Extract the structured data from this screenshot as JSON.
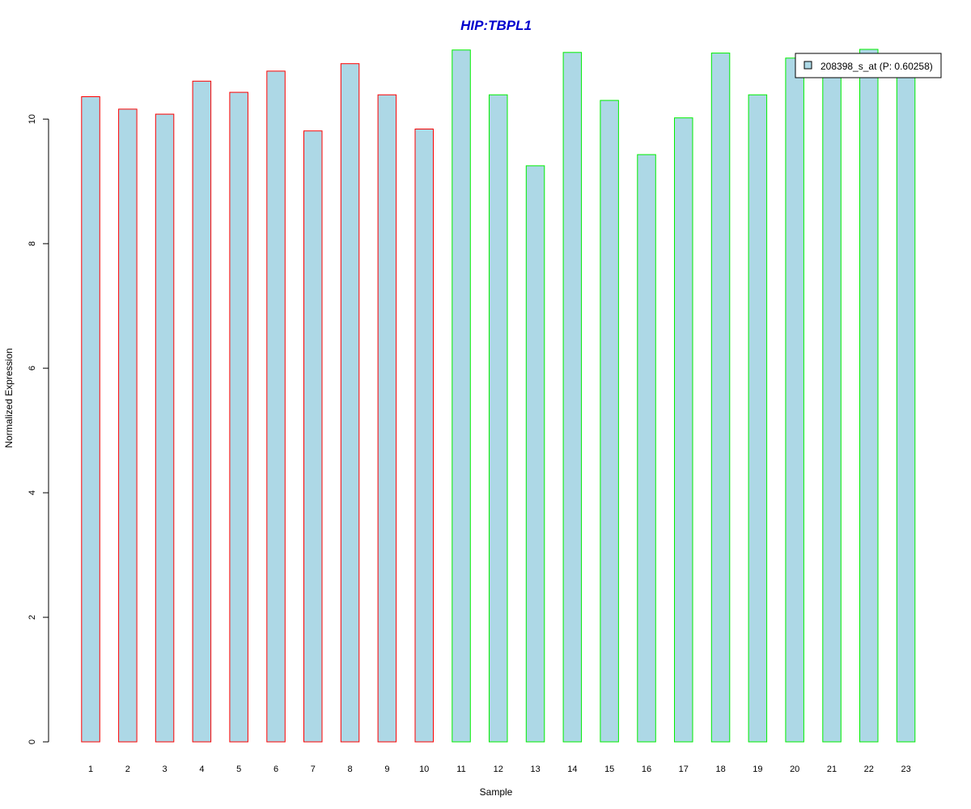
{
  "chart_data": {
    "type": "bar",
    "title": "HIP:TBPL1",
    "xlabel": "Sample",
    "ylabel": "Normalized Expression",
    "categories": [
      "1",
      "2",
      "3",
      "4",
      "5",
      "6",
      "7",
      "8",
      "9",
      "10",
      "11",
      "12",
      "13",
      "14",
      "15",
      "16",
      "17",
      "18",
      "19",
      "20",
      "21",
      "22",
      "23"
    ],
    "series": [
      {
        "name": "208398_s_at (P: 0.60258)",
        "values": [
          10.36,
          10.16,
          10.08,
          10.61,
          10.43,
          10.77,
          9.81,
          10.89,
          10.39,
          9.84,
          11.11,
          10.39,
          9.25,
          11.07,
          10.3,
          9.43,
          10.02,
          11.06,
          10.39,
          10.98,
          10.89,
          11.12,
          10.88
        ]
      }
    ],
    "groups": [
      1,
      1,
      1,
      1,
      1,
      1,
      1,
      1,
      1,
      1,
      2,
      2,
      2,
      2,
      2,
      2,
      2,
      2,
      2,
      2,
      2,
      2,
      2
    ],
    "group_colors": {
      "1": "#ff0000",
      "2": "#00ee00"
    },
    "bar_fill": "#add8e6",
    "title_color": "#0000cd",
    "yticks": [
      0,
      2,
      4,
      6,
      8,
      10
    ],
    "ylim": [
      0,
      11.12
    ],
    "grid": false,
    "legend_position": "top-right"
  }
}
